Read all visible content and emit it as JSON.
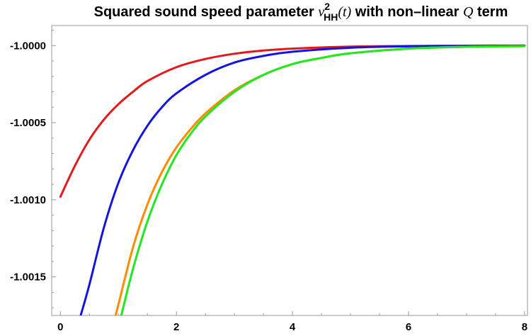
{
  "chart_data": {
    "type": "line",
    "title": {
      "prefix": "Squared sound speed parameter ",
      "symbol": "v",
      "superscript": "2",
      "subscript": "HH",
      "argument": "(t)",
      "middle": " with non–linear ",
      "q_symbol": "Q",
      "suffix": " term"
    },
    "xlabel": "",
    "ylabel": "",
    "xlim": [
      -0.15,
      8.05
    ],
    "ylim": [
      -1.00175,
      -0.99987
    ],
    "x_ticks": [
      0,
      2,
      4,
      6,
      8
    ],
    "x_tick_labels": [
      "0",
      "2",
      "4",
      "6",
      "8"
    ],
    "y_ticks": [
      -1.0,
      -1.0005,
      -1.001,
      -1.0015
    ],
    "y_tick_labels": [
      "-1.0000",
      "-1.0005",
      "-1.0010",
      "-1.0015"
    ],
    "grid": false,
    "legend": "none",
    "series": [
      {
        "color": "#e41a1a",
        "x": [
          0.0,
          0.25,
          0.5,
          0.75,
          1.0,
          1.25,
          1.5,
          2.0,
          2.5,
          3.0,
          3.5,
          4.0,
          5.0,
          6.0,
          7.0,
          8.0
        ],
        "y": [
          -1.00098,
          -1.00078,
          -1.00061,
          -1.00048,
          -1.00038,
          -1.0003,
          -1.00023,
          -1.00014,
          -1.000087,
          -1.000053,
          -1.000032,
          -1.00002,
          -1.000007,
          -1.0000027,
          -1.000001,
          -1.0000004
        ]
      },
      {
        "color": "#1414e0",
        "x": [
          0.35,
          0.5,
          0.75,
          1.0,
          1.25,
          1.5,
          1.75,
          2.0,
          2.5,
          3.0,
          3.5,
          4.0,
          5.0,
          6.0,
          7.0,
          8.0
        ],
        "y": [
          -1.00175,
          -1.00155,
          -1.00118,
          -1.00089,
          -1.00068,
          -1.00052,
          -1.0004,
          -1.00031,
          -1.00019,
          -1.00011,
          -1.000067,
          -1.00004,
          -1.000014,
          -1.000005,
          -1.000002,
          -1.0000007
        ]
      },
      {
        "color": "#ff8c00",
        "x": [
          0.95,
          1.0,
          1.25,
          1.5,
          1.75,
          2.0,
          2.25,
          2.5,
          3.0,
          3.5,
          4.0,
          4.5,
          5.0,
          6.0,
          7.0,
          8.0
        ],
        "y": [
          -1.00175,
          -1.00168,
          -1.00131,
          -1.00103,
          -1.00082,
          -1.00066,
          -1.00054,
          -1.00044,
          -1.00029,
          -1.00019,
          -1.00012,
          -1.00008,
          -1.00005,
          -1.00002,
          -1.000008,
          -1.000004
        ]
      },
      {
        "color": "#22e822",
        "x": [
          1.05,
          1.25,
          1.5,
          1.75,
          2.0,
          2.25,
          2.5,
          3.0,
          3.5,
          4.0,
          4.5,
          5.0,
          6.0,
          7.0,
          8.0
        ],
        "y": [
          -1.00175,
          -1.00145,
          -1.00114,
          -1.0009,
          -1.00071,
          -1.00057,
          -1.00046,
          -1.0003,
          -1.00019,
          -1.00012,
          -1.00008,
          -1.00005,
          -1.00002,
          -1.000008,
          -1.000004
        ]
      }
    ]
  }
}
